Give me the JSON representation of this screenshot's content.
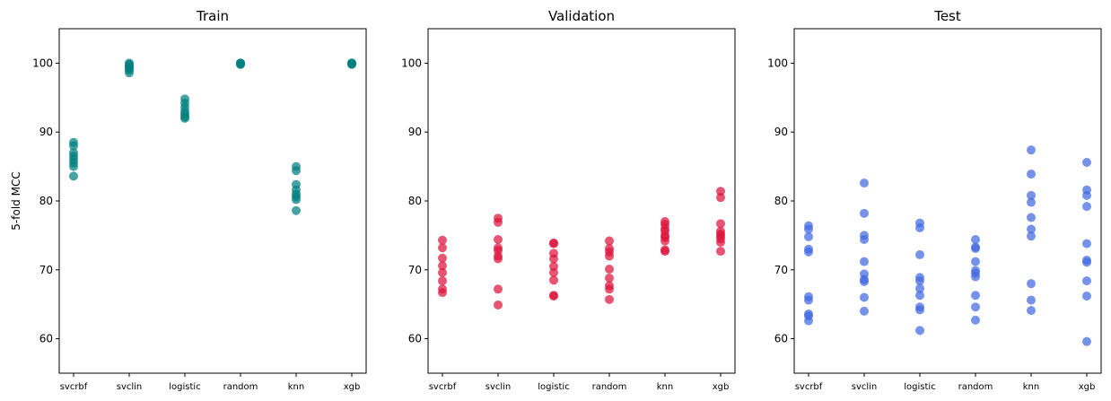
{
  "chart_data": [
    {
      "type": "scatter",
      "title": "Train",
      "xlabel": "",
      "ylabel": "5-fold MCC",
      "ylim": [
        55,
        105
      ],
      "yticks": [
        60,
        70,
        80,
        90,
        100
      ],
      "grid": false,
      "color": "#008080",
      "categories": [
        "svcrbf",
        "svclin",
        "logistic",
        "random",
        "knn",
        "xgb"
      ],
      "values": [
        [
          88.5,
          88.0,
          87.0,
          86.5,
          86.0,
          85.5,
          85.0,
          83.6
        ],
        [
          100.0,
          99.8,
          99.6,
          99.4,
          99.2,
          99.0,
          98.6
        ],
        [
          94.8,
          94.2,
          93.6,
          93.0,
          92.6,
          92.2,
          92.0
        ],
        [
          100.0,
          100.0,
          100.0,
          99.9,
          99.8
        ],
        [
          85.0,
          84.4,
          82.4,
          81.6,
          81.0,
          80.6,
          80.2,
          78.6
        ],
        [
          100.0,
          100.0,
          100.0,
          99.9,
          99.8
        ]
      ]
    },
    {
      "type": "scatter",
      "title": "Validation",
      "xlabel": "",
      "ylabel": "",
      "ylim": [
        55,
        105
      ],
      "yticks": [
        60,
        70,
        80,
        90,
        100
      ],
      "grid": false,
      "color": "#DC143C",
      "categories": [
        "svcrbf",
        "svclin",
        "logistic",
        "random",
        "knn",
        "xgb"
      ],
      "values": [
        [
          74.3,
          73.2,
          71.7,
          70.6,
          69.6,
          68.4,
          67.2,
          66.7
        ],
        [
          77.5,
          76.9,
          74.4,
          73.2,
          72.8,
          72.0,
          71.6,
          67.2,
          64.9
        ],
        [
          73.9,
          73.8,
          72.4,
          71.6,
          70.5,
          69.6,
          68.5,
          66.3,
          66.2
        ],
        [
          74.2,
          73.1,
          72.6,
          72.0,
          70.1,
          68.8,
          67.7,
          67.2,
          65.7
        ],
        [
          77.0,
          76.6,
          76.0,
          75.6,
          75.0,
          74.7,
          74.2,
          72.9,
          72.7
        ],
        [
          81.4,
          80.5,
          76.7,
          75.6,
          75.2,
          74.9,
          74.5,
          74.0,
          72.7
        ]
      ]
    },
    {
      "type": "scatter",
      "title": "Test",
      "xlabel": "",
      "ylabel": "",
      "ylim": [
        55,
        105
      ],
      "yticks": [
        60,
        70,
        80,
        90,
        100
      ],
      "grid": false,
      "color": "#4169E1",
      "categories": [
        "svcrbf",
        "svclin",
        "logistic",
        "random",
        "knn",
        "xgb"
      ],
      "values": [
        [
          76.4,
          75.9,
          74.8,
          73.0,
          72.6,
          66.1,
          65.6,
          63.6,
          63.3,
          62.6
        ],
        [
          82.6,
          78.2,
          75.0,
          74.4,
          71.2,
          69.4,
          68.6,
          68.3,
          66.0,
          64.0
        ],
        [
          76.8,
          76.1,
          72.2,
          68.9,
          68.4,
          67.3,
          66.3,
          64.6,
          64.2,
          61.2
        ],
        [
          74.4,
          73.3,
          73.1,
          71.2,
          69.9,
          69.5,
          69.0,
          66.3,
          64.6,
          62.7
        ],
        [
          87.4,
          83.9,
          80.8,
          79.8,
          77.6,
          75.9,
          74.9,
          68.0,
          65.6,
          64.1
        ],
        [
          85.6,
          81.6,
          80.8,
          79.2,
          73.8,
          71.4,
          71.1,
          68.4,
          66.2,
          59.6
        ]
      ]
    }
  ]
}
